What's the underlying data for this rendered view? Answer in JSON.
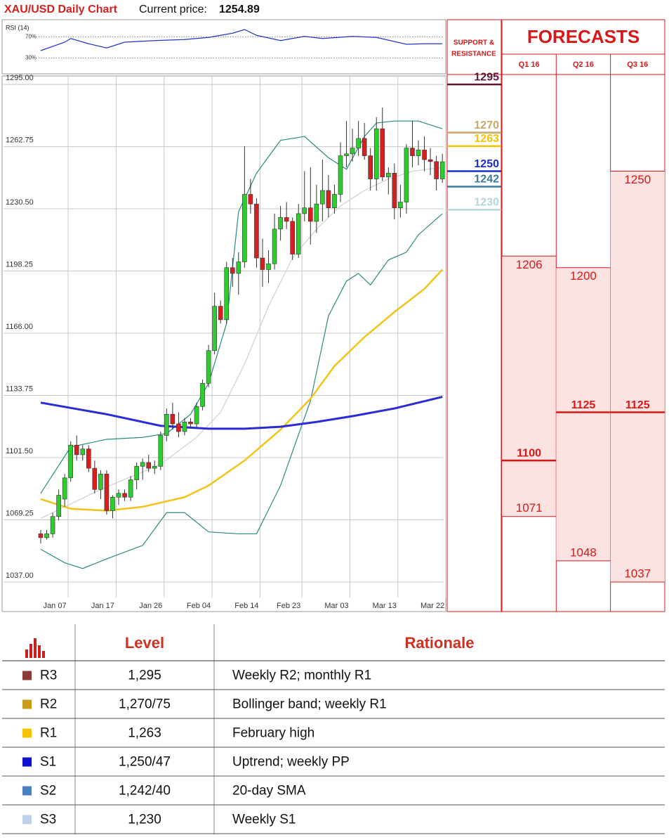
{
  "chart_data": [
    {
      "type": "candlestick",
      "title": "XAU/USD Daily Chart",
      "current_price_label": "Current price:",
      "current_price": 1254.89,
      "categories": [
        null,
        null,
        "Jan 07",
        null,
        null,
        null,
        null,
        null,
        null,
        null,
        "Jan 17",
        null,
        null,
        null,
        null,
        null,
        null,
        null,
        "Jan 26",
        null,
        null,
        null,
        null,
        null,
        null,
        null,
        "Feb 04",
        null,
        null,
        null,
        null,
        null,
        null,
        null,
        "Feb 14",
        null,
        null,
        null,
        null,
        null,
        null,
        "Feb 23",
        null,
        null,
        null,
        null,
        null,
        null,
        null,
        "Mar 03",
        null,
        null,
        null,
        null,
        null,
        null,
        null,
        "Mar 13",
        null,
        null,
        null,
        null,
        null,
        null,
        null,
        "Mar 22",
        null,
        null
      ],
      "open": [
        1062,
        1060,
        1062,
        1071,
        1080,
        1091,
        1108,
        1103,
        1106,
        1096,
        1085,
        1093,
        1074,
        1081,
        1083,
        1081,
        1090,
        1097,
        1099,
        1096,
        1097,
        1113,
        1124,
        1119,
        1115,
        1120,
        1119,
        1128,
        1140,
        1157,
        1180,
        1173,
        1200,
        1197,
        1203,
        1238,
        1233,
        1205,
        1199,
        1202,
        1220,
        1226,
        1224,
        1207,
        1228,
        1231,
        1224,
        1233,
        1240,
        1231,
        1238,
        1258,
        1259,
        1262,
        1267,
        1258,
        1246,
        1272,
        1247,
        1249,
        1231,
        1234,
        1262,
        1258,
        1261,
        1256,
        1255,
        1246
      ],
      "high": [
        1064,
        1064,
        1073,
        1085,
        1093,
        1110,
        1113,
        1108,
        1108,
        1100,
        1095,
        1095,
        1082,
        1085,
        1085,
        1092,
        1099,
        1101,
        1103,
        1100,
        1115,
        1127,
        1130,
        1125,
        1122,
        1122,
        1130,
        1142,
        1160,
        1187,
        1183,
        1203,
        1205,
        1208,
        1263,
        1246,
        1236,
        1215,
        1209,
        1228,
        1232,
        1234,
        1226,
        1233,
        1250,
        1252,
        1243,
        1256,
        1248,
        1243,
        1265,
        1276,
        1272,
        1276,
        1275,
        1262,
        1278,
        1283,
        1252,
        1254,
        1243,
        1264,
        1276,
        1266,
        1268,
        1262,
        1258,
        1259
      ],
      "low": [
        1057,
        1059,
        1060,
        1069,
        1076,
        1089,
        1100,
        1100,
        1094,
        1083,
        1080,
        1072,
        1070,
        1077,
        1079,
        1079,
        1085,
        1090,
        1094,
        1093,
        1095,
        1110,
        1116,
        1112,
        1113,
        1117,
        1117,
        1126,
        1138,
        1155,
        1171,
        1171,
        1190,
        1186,
        1200,
        1228,
        1200,
        1190,
        1192,
        1199,
        1214,
        1220,
        1204,
        1205,
        1224,
        1212,
        1218,
        1224,
        1226,
        1228,
        1234,
        1252,
        1255,
        1258,
        1256,
        1240,
        1240,
        1245,
        1238,
        1225,
        1226,
        1228,
        1252,
        1253,
        1250,
        1248,
        1240,
        1244
      ],
      "close": [
        1060,
        1062,
        1071,
        1082,
        1091,
        1108,
        1103,
        1106,
        1096,
        1085,
        1093,
        1074,
        1081,
        1083,
        1081,
        1090,
        1097,
        1099,
        1096,
        1097,
        1113,
        1124,
        1119,
        1115,
        1120,
        1119,
        1128,
        1140,
        1157,
        1180,
        1173,
        1200,
        1197,
        1203,
        1238,
        1233,
        1205,
        1199,
        1202,
        1220,
        1226,
        1224,
        1207,
        1228,
        1231,
        1224,
        1233,
        1240,
        1231,
        1238,
        1258,
        1259,
        1262,
        1267,
        1258,
        1246,
        1272,
        1247,
        1249,
        1231,
        1234,
        1262,
        1258,
        1261,
        1256,
        1255,
        1246,
        1254.89
      ],
      "up_color": "#2ecc2e",
      "down_color": "#d42020",
      "ylim": [
        1021.7,
        1299.4
      ],
      "yticks": [
        {
          "value": 1295,
          "label": "1295.00"
        },
        1262.75,
        {
          "value": 1230.5,
          "label": "1230.50"
        },
        1198.25,
        {
          "value": 1166,
          "label": "1166.00"
        },
        1133.75,
        {
          "value": 1101.5,
          "label": "1101.50"
        },
        1069.25,
        {
          "value": 1037,
          "label": "1037.00"
        }
      ],
      "grid": true,
      "overlays": [
        {
          "color": "#2a8a80",
          "x": [
            0,
            5,
            11,
            17,
            21,
            25,
            28,
            31,
            33,
            36,
            40,
            44,
            48,
            51,
            54,
            56,
            59,
            63,
            67
          ],
          "values": [
            1083,
            1107,
            1111,
            1112,
            1114,
            1124,
            1140,
            1171,
            1229,
            1249,
            1266,
            1268,
            1257,
            1251,
            1268,
            1275,
            1276,
            1276,
            1272
          ]
        },
        {
          "color": "#2a8a80",
          "x": [
            0,
            4,
            7,
            11,
            17,
            21,
            24,
            28,
            33,
            36,
            40,
            45,
            48,
            51,
            53,
            55,
            58,
            61,
            63,
            67
          ],
          "values": [
            1054,
            1047,
            1044,
            1049,
            1056,
            1073,
            1073,
            1063,
            1062,
            1062,
            1087,
            1131,
            1175,
            1193,
            1197,
            1191,
            1204,
            1208,
            1217,
            1228
          ]
        },
        {
          "color": "#d0d0d0",
          "x": [
            0,
            10,
            20,
            26,
            30,
            34,
            38,
            42,
            46,
            50,
            54,
            58,
            62,
            67
          ],
          "values": [
            1070,
            1085,
            1098,
            1112,
            1125,
            1150,
            1180,
            1205,
            1220,
            1232,
            1240,
            1246,
            1250,
            1252
          ]
        },
        {
          "color": "#f2c318",
          "x": [
            0,
            5,
            11,
            17,
            24,
            28,
            34,
            40,
            45,
            49,
            54,
            59,
            64,
            67
          ],
          "values": [
            1080,
            1075,
            1074,
            1076,
            1081,
            1087,
            1100,
            1116,
            1132,
            1149,
            1164,
            1177,
            1189,
            1199
          ]
        },
        {
          "color": "#2b2bd6",
          "x": [
            0,
            11,
            20,
            28,
            34,
            40,
            46,
            52,
            59,
            67
          ],
          "values": [
            1130,
            1124,
            1118,
            1116.5,
            1116.5,
            1117.5,
            1120,
            1123,
            1127,
            1133
          ]
        }
      ]
    },
    {
      "type": "line",
      "title": "RSI (14)",
      "color": "#2233cc",
      "ylim": [
        0,
        100
      ],
      "yticks": [
        {
          "value": 70,
          "label": "70%"
        },
        {
          "value": 30,
          "label": "30%"
        }
      ],
      "x": [
        0,
        4,
        5,
        8,
        11,
        14,
        19,
        24,
        28,
        32,
        34,
        36,
        40,
        44,
        47,
        52,
        56,
        61,
        64,
        67
      ],
      "values": [
        44,
        60,
        67,
        57,
        49,
        60,
        63,
        65,
        69,
        77,
        84,
        73,
        63,
        71,
        67,
        71,
        69,
        56,
        57,
        57
      ]
    }
  ],
  "support_resistance": {
    "header": [
      "SUPPORT &",
      "RESISTANCE"
    ],
    "levels": [
      {
        "value": 1295,
        "color": "#5a1838"
      },
      {
        "value": 1270,
        "color": "#c9a86a"
      },
      {
        "value": 1263,
        "color": "#f5c400"
      },
      {
        "value": 1250,
        "color": "#1a2ad0"
      },
      {
        "value": 1242,
        "color": "#3a7a9a"
      },
      {
        "value": 1230,
        "color": "#b5d6da"
      }
    ]
  },
  "forecasts": {
    "title": "FORECASTS",
    "columns": [
      {
        "label": "Q1 16",
        "high": 1206,
        "median": 1100,
        "low": 1071
      },
      {
        "label": "Q2 16",
        "high": 1200,
        "median": 1125,
        "low": 1048
      },
      {
        "label": "Q3 16",
        "high": 1250,
        "median": 1125,
        "low": 1037
      }
    ]
  },
  "table": {
    "header": [
      "Level",
      "Rationale"
    ],
    "rows": [
      {
        "color": "#8b3a3a",
        "code": "R3",
        "level": "1,295",
        "rationale": "Weekly R2; monthly R1"
      },
      {
        "color": "#c89c18",
        "code": "R2",
        "level": "1,270/75",
        "rationale": "Bollinger band; weekly R1"
      },
      {
        "color": "#f5c400",
        "code": "R1",
        "level": "1,263",
        "rationale": "February high"
      },
      {
        "color": "#1010d0",
        "code": "S1",
        "level": "1,250/47",
        "rationale": "Uptrend; weekly PP"
      },
      {
        "color": "#4a80c0",
        "code": "S2",
        "level": "1,242/40",
        "rationale": "20-day SMA"
      },
      {
        "color": "#c0d0e8",
        "code": "S3",
        "level": "1,230",
        "rationale": "Weekly S1"
      }
    ]
  }
}
